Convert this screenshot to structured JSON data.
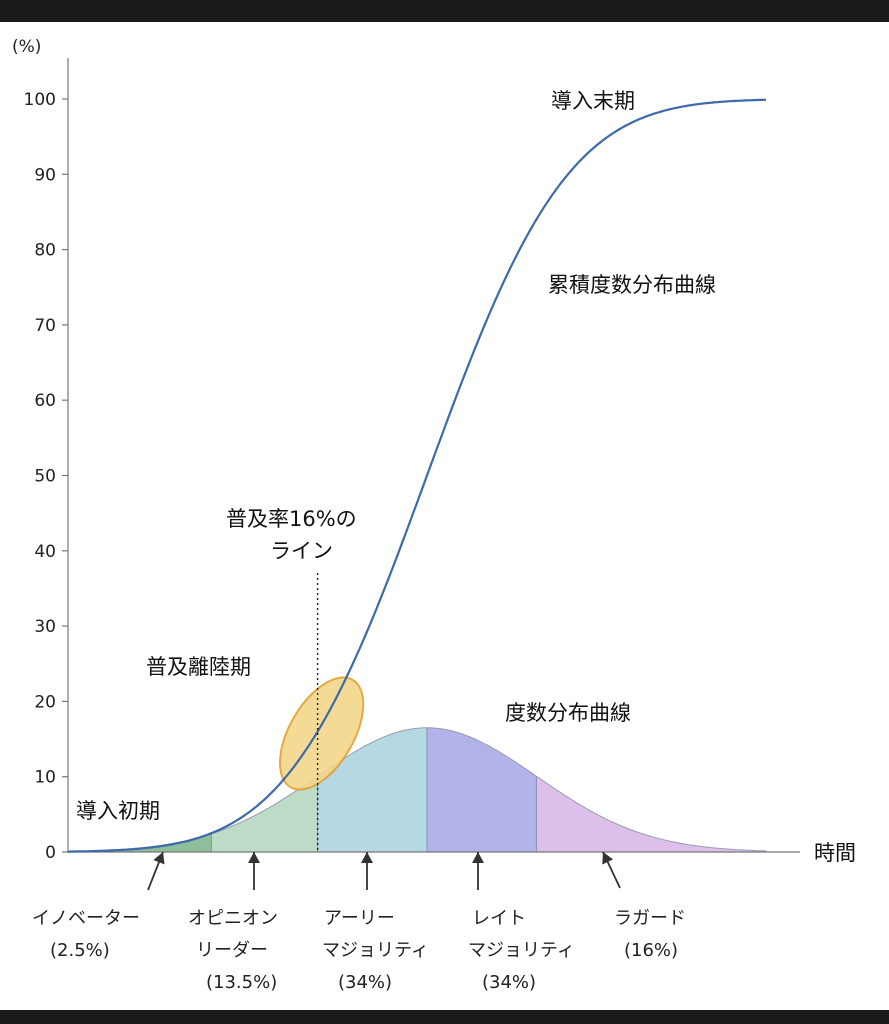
{
  "chart_data": {
    "type": "area",
    "y_unit": "(%)",
    "x_label": "時間",
    "ylim": [
      0,
      100
    ],
    "y_ticks": [
      0,
      10,
      20,
      30,
      40,
      50,
      60,
      70,
      80,
      90,
      100
    ],
    "series": [
      {
        "name": "累積度数分布曲線",
        "kind": "cumulative-line",
        "color": "#3d6aa8",
        "values_at_segment_edges": [
          0.1,
          2.5,
          16,
          50,
          84,
          100
        ]
      },
      {
        "name": "度数分布曲線",
        "kind": "bell-area",
        "peak_value": 16.5
      }
    ],
    "segments": [
      {
        "id": "innovator",
        "lines": [
          "イノベーター",
          "(2.5%)"
        ],
        "share": 2.5,
        "color": "#8fbf9a"
      },
      {
        "id": "opinion-leader",
        "lines": [
          "オピニオン",
          "リーダー",
          "(13.5%)"
        ],
        "share": 13.5,
        "color": "#bcdcc8"
      },
      {
        "id": "early-majority",
        "lines": [
          "アーリー",
          "マジョリティ",
          "(34%)"
        ],
        "share": 34,
        "color": "#b5d8e3"
      },
      {
        "id": "late-majority",
        "lines": [
          "レイト",
          "マジョリティ",
          "(34%)"
        ],
        "share": 34,
        "color": "#b1b3e9"
      },
      {
        "id": "laggard",
        "lines": [
          "ラガード",
          "(16%)"
        ],
        "share": 16,
        "color": "#dcc0ea"
      }
    ],
    "annotations": {
      "late_phase": "導入末期",
      "cumulative_label": "累積度数分布曲線",
      "line16": [
        "普及率16%の",
        "ライン"
      ],
      "chasm": "普及離陸期",
      "frequency_label": "度数分布曲線",
      "early_phase": "導入初期"
    },
    "highlight": {
      "name": "chasm-ellipse",
      "fill": "#f5d68a",
      "stroke": "#e0a030"
    }
  }
}
